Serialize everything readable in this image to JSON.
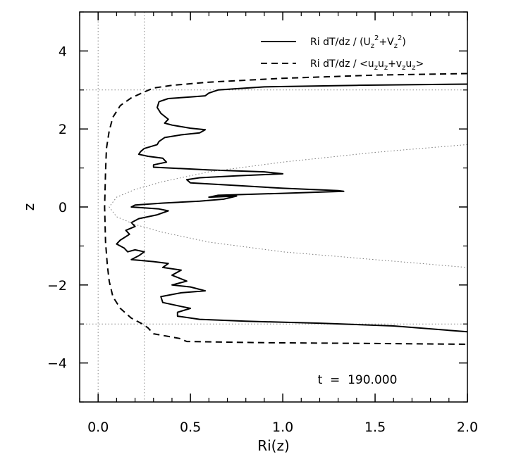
{
  "chart_data": {
    "type": "line",
    "title": "",
    "xlabel": "Ri(z)",
    "ylabel": "z",
    "xlim": [
      -0.1,
      2.0
    ],
    "ylim": [
      -5,
      5
    ],
    "x_ticks": [
      "0.0",
      "0.5",
      "1.0",
      "1.5",
      "2.0"
    ],
    "y_ticks": [
      "−4",
      "−2",
      "0",
      "2",
      "4"
    ],
    "annotation": "t  =  190.000",
    "legend": {
      "placement": "top-right",
      "entries": [
        {
          "name": "Ri dT/dz / (U_z^2+V_z^2)",
          "prefix": "Ri dT/dz / (U",
          "style": "solid"
        },
        {
          "name": "Ri dT/dz / <u_z u_z+v_z u_z>",
          "prefix": "Ri dT/dz / <u",
          "style": "dashed"
        }
      ]
    },
    "reference_lines": {
      "vertical_x": [
        0,
        0.25
      ],
      "horizontal_y": [
        -3,
        3
      ]
    },
    "series": [
      {
        "style": "solid",
        "points": [
          [
            2.0,
            3.15
          ],
          [
            1.4,
            3.12
          ],
          [
            0.9,
            3.08
          ],
          [
            0.65,
            3.0
          ],
          [
            0.6,
            2.92
          ],
          [
            0.58,
            2.85
          ],
          [
            0.5,
            2.82
          ],
          [
            0.38,
            2.78
          ],
          [
            0.33,
            2.7
          ],
          [
            0.32,
            2.55
          ],
          [
            0.34,
            2.4
          ],
          [
            0.38,
            2.25
          ],
          [
            0.36,
            2.15
          ],
          [
            0.4,
            2.1
          ],
          [
            0.5,
            2.02
          ],
          [
            0.58,
            1.98
          ],
          [
            0.55,
            1.9
          ],
          [
            0.45,
            1.85
          ],
          [
            0.36,
            1.78
          ],
          [
            0.33,
            1.68
          ],
          [
            0.32,
            1.6
          ],
          [
            0.25,
            1.5
          ],
          [
            0.23,
            1.42
          ],
          [
            0.22,
            1.35
          ],
          [
            0.27,
            1.3
          ],
          [
            0.35,
            1.25
          ],
          [
            0.37,
            1.15
          ],
          [
            0.3,
            1.08
          ],
          [
            0.3,
            1.02
          ],
          [
            0.6,
            0.95
          ],
          [
            0.9,
            0.9
          ],
          [
            1.0,
            0.85
          ],
          [
            0.75,
            0.8
          ],
          [
            0.55,
            0.75
          ],
          [
            0.48,
            0.7
          ],
          [
            0.5,
            0.62
          ],
          [
            0.75,
            0.55
          ],
          [
            1.0,
            0.48
          ],
          [
            1.3,
            0.42
          ],
          [
            1.33,
            0.4
          ],
          [
            1.0,
            0.35
          ],
          [
            0.65,
            0.3
          ],
          [
            0.6,
            0.25
          ],
          [
            0.75,
            0.28
          ],
          [
            0.68,
            0.2
          ],
          [
            0.55,
            0.15
          ],
          [
            0.35,
            0.1
          ],
          [
            0.2,
            0.05
          ],
          [
            0.18,
            0.0
          ],
          [
            0.33,
            -0.05
          ],
          [
            0.38,
            -0.1
          ],
          [
            0.32,
            -0.2
          ],
          [
            0.22,
            -0.3
          ],
          [
            0.18,
            -0.4
          ],
          [
            0.2,
            -0.5
          ],
          [
            0.15,
            -0.6
          ],
          [
            0.17,
            -0.7
          ],
          [
            0.12,
            -0.85
          ],
          [
            0.1,
            -0.95
          ],
          [
            0.14,
            -1.05
          ],
          [
            0.16,
            -1.15
          ],
          [
            0.2,
            -1.1
          ],
          [
            0.25,
            -1.15
          ],
          [
            0.22,
            -1.25
          ],
          [
            0.18,
            -1.35
          ],
          [
            0.3,
            -1.4
          ],
          [
            0.38,
            -1.45
          ],
          [
            0.35,
            -1.55
          ],
          [
            0.45,
            -1.62
          ],
          [
            0.4,
            -1.75
          ],
          [
            0.48,
            -1.9
          ],
          [
            0.4,
            -2.0
          ],
          [
            0.5,
            -2.05
          ],
          [
            0.58,
            -2.15
          ],
          [
            0.45,
            -2.2
          ],
          [
            0.34,
            -2.3
          ],
          [
            0.35,
            -2.45
          ],
          [
            0.45,
            -2.55
          ],
          [
            0.5,
            -2.6
          ],
          [
            0.43,
            -2.7
          ],
          [
            0.43,
            -2.8
          ],
          [
            0.55,
            -2.88
          ],
          [
            0.8,
            -2.93
          ],
          [
            1.2,
            -2.98
          ],
          [
            1.6,
            -3.05
          ],
          [
            2.0,
            -3.2
          ]
        ]
      },
      {
        "style": "dashed",
        "points": [
          [
            2.0,
            3.42
          ],
          [
            1.5,
            3.38
          ],
          [
            1.0,
            3.3
          ],
          [
            0.6,
            3.2
          ],
          [
            0.4,
            3.12
          ],
          [
            0.3,
            3.05
          ],
          [
            0.25,
            2.95
          ],
          [
            0.18,
            2.8
          ],
          [
            0.12,
            2.6
          ],
          [
            0.08,
            2.3
          ],
          [
            0.06,
            1.95
          ],
          [
            0.045,
            1.5
          ],
          [
            0.04,
            0.9
          ],
          [
            0.035,
            0.0
          ],
          [
            0.04,
            -0.9
          ],
          [
            0.05,
            -1.5
          ],
          [
            0.06,
            -1.9
          ],
          [
            0.08,
            -2.3
          ],
          [
            0.12,
            -2.6
          ],
          [
            0.18,
            -2.85
          ],
          [
            0.24,
            -3.0
          ],
          [
            0.27,
            -3.1
          ],
          [
            0.3,
            -3.25
          ],
          [
            0.44,
            -3.37
          ],
          [
            0.48,
            -3.45
          ],
          [
            0.9,
            -3.48
          ],
          [
            1.5,
            -3.5
          ],
          [
            2.0,
            -3.52
          ]
        ]
      },
      {
        "style": "dotted",
        "points": [
          [
            2.0,
            1.6
          ],
          [
            1.5,
            1.4
          ],
          [
            1.0,
            1.15
          ],
          [
            0.6,
            0.9
          ],
          [
            0.35,
            0.65
          ],
          [
            0.2,
            0.45
          ],
          [
            0.1,
            0.25
          ],
          [
            0.06,
            0.0
          ],
          [
            0.1,
            -0.25
          ],
          [
            0.2,
            -0.45
          ],
          [
            0.35,
            -0.65
          ],
          [
            0.6,
            -0.9
          ],
          [
            1.0,
            -1.15
          ],
          [
            1.5,
            -1.35
          ],
          [
            2.0,
            -1.55
          ]
        ]
      }
    ]
  }
}
